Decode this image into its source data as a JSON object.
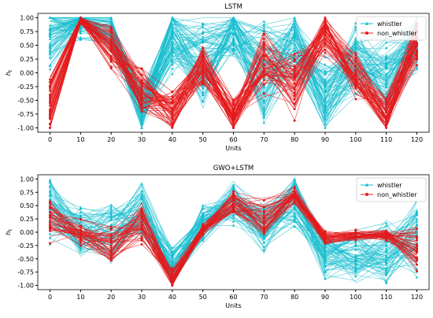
{
  "chart_data": [
    {
      "type": "line",
      "title": "LSTM",
      "xlabel": "Units",
      "ylabel": "h_t",
      "ylabel_main": "h",
      "ylabel_sub": "t",
      "x": [
        0,
        10,
        20,
        30,
        40,
        50,
        60,
        70,
        80,
        90,
        100,
        110,
        120
      ],
      "xticks": [
        "0",
        "10",
        "20",
        "30",
        "40",
        "50",
        "60",
        "70",
        "80",
        "90",
        "100",
        "110",
        "120"
      ],
      "yticks": [
        "-1.00",
        "-0.75",
        "-0.50",
        "-0.25",
        "0.00",
        "0.25",
        "0.50",
        "0.75",
        "1.00"
      ],
      "ylim": [
        -1.08,
        1.08
      ],
      "xlim": [
        -4,
        124
      ],
      "grid": false,
      "legend_position": "top-right",
      "series": [
        {
          "name": "whistler",
          "color": "#17becf",
          "marker": "triangle",
          "samples_shown": 80,
          "mean": [
            0.72,
            0.97,
            0.78,
            -0.65,
            0.62,
            0.18,
            0.78,
            0.05,
            0.45,
            -0.45,
            0.18,
            -0.1,
            0.55
          ],
          "spread": [
            0.55,
            0.3,
            0.25,
            0.35,
            0.45,
            0.6,
            0.35,
            0.65,
            0.45,
            0.55,
            0.5,
            0.6,
            0.4
          ]
        },
        {
          "name": "non_whistler",
          "color": "#e41a1c",
          "marker": "circle",
          "samples_shown": 60,
          "mean": [
            -0.55,
            0.98,
            0.45,
            -0.35,
            -0.72,
            0.15,
            -0.78,
            0.15,
            -0.25,
            0.72,
            -0.05,
            -0.75,
            0.55
          ],
          "spread": [
            0.5,
            0.08,
            0.3,
            0.35,
            0.3,
            0.3,
            0.25,
            0.45,
            0.45,
            0.3,
            0.3,
            0.3,
            0.3
          ]
        }
      ]
    },
    {
      "type": "line",
      "title": "GWO+LSTM",
      "xlabel": "Units",
      "ylabel": "h_t",
      "ylabel_main": "h",
      "ylabel_sub": "t",
      "x": [
        0,
        10,
        20,
        30,
        40,
        50,
        60,
        70,
        80,
        90,
        100,
        110,
        120
      ],
      "xticks": [
        "0",
        "10",
        "20",
        "30",
        "40",
        "50",
        "60",
        "70",
        "80",
        "90",
        "100",
        "110",
        "120"
      ],
      "yticks": [
        "-1.00",
        "-0.75",
        "-0.50",
        "-0.25",
        "0.00",
        "0.25",
        "0.50",
        "0.75",
        "1.00"
      ],
      "ylim": [
        -1.08,
        1.08
      ],
      "xlim": [
        -4,
        124
      ],
      "grid": false,
      "legend_position": "top-right",
      "series": [
        {
          "name": "whistler",
          "color": "#17becf",
          "marker": "triangle",
          "samples_shown": 70,
          "mean": [
            0.45,
            0.05,
            0.05,
            0.45,
            -0.65,
            0.15,
            0.55,
            0.1,
            0.55,
            -0.45,
            -0.4,
            -0.4,
            -0.05
          ],
          "spread": [
            0.5,
            0.35,
            0.45,
            0.45,
            0.3,
            0.25,
            0.3,
            0.35,
            0.35,
            0.35,
            0.4,
            0.45,
            0.55
          ]
        },
        {
          "name": "non_whistler",
          "color": "#e41a1c",
          "marker": "circle",
          "samples_shown": 45,
          "mean": [
            0.2,
            0.0,
            -0.2,
            0.15,
            -0.85,
            0.05,
            0.55,
            0.25,
            0.7,
            -0.1,
            -0.05,
            -0.05,
            -0.3
          ],
          "spread": [
            0.3,
            0.2,
            0.3,
            0.3,
            0.15,
            0.08,
            0.15,
            0.3,
            0.12,
            0.1,
            0.08,
            0.08,
            0.35
          ]
        }
      ]
    }
  ]
}
